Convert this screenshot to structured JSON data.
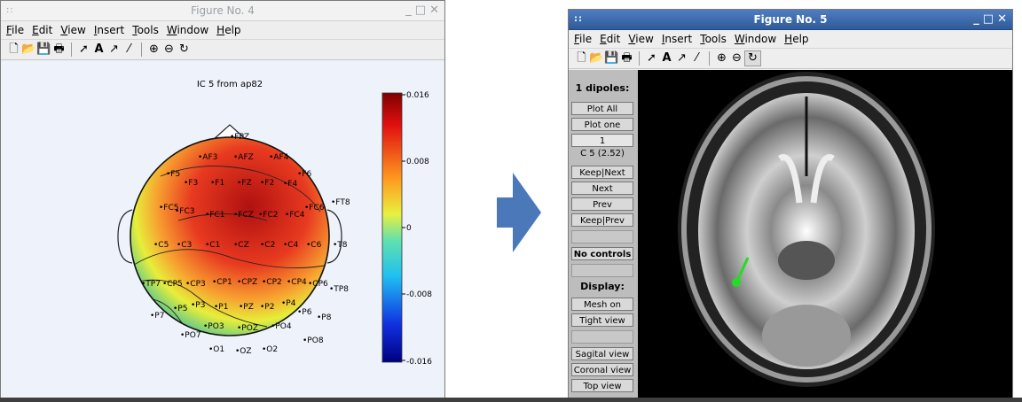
{
  "fig4": {
    "title": "Figure No. 4",
    "menu": [
      "File",
      "Edit",
      "View",
      "Insert",
      "Tools",
      "Window",
      "Help"
    ],
    "plot_title": "IC 5 from ap82",
    "colorbar_ticks": [
      "0.016",
      "0.008",
      "0",
      "-0.008",
      "-0.016"
    ],
    "electrodes": [
      "FPZ",
      "AF3",
      "AFZ",
      "AF4",
      "F5",
      "F3",
      "F1",
      "FZ",
      "F2",
      "F4",
      "F6",
      "FC5",
      "FC3",
      "FC1",
      "FCZ",
      "FC2",
      "FC4",
      "FC6",
      "FT8",
      "C5",
      "C3",
      "C1",
      "CZ",
      "C2",
      "C4",
      "C6",
      "T8",
      "TP7",
      "CP5",
      "CP3",
      "CP1",
      "CPZ",
      "CP2",
      "CP4",
      "CP6",
      "TP8",
      "P7",
      "P5",
      "P3",
      "P1",
      "PZ",
      "P2",
      "P4",
      "P6",
      "P8",
      "PO7",
      "PO3",
      "POZ",
      "PO4",
      "PO8",
      "O1",
      "OZ",
      "O2"
    ]
  },
  "fig5": {
    "title": "Figure No. 5",
    "menu": [
      "File",
      "Edit",
      "View",
      "Insert",
      "Tools",
      "Window",
      "Help"
    ],
    "dipoles_label": "1 dipoles:",
    "plot_all": "Plot All",
    "plot_one": "Plot one",
    "index_value": "1",
    "component": "C 5 (2.52)",
    "keep_next": "Keep|Next",
    "next": "Next",
    "prev": "Prev",
    "keep_prev": "Keep|Prev",
    "no_controls": "No controls",
    "display_label": "Display:",
    "mesh_on": "Mesh on",
    "tight_view": "Tight view",
    "sagital_view": "Sagital view",
    "coronal_view": "Coronal view",
    "top_view": "Top view"
  },
  "colors": {
    "active_title": "#2f5a98",
    "arrow": "#4a78b8",
    "dipole": "#22dd22"
  },
  "icons": [
    "new-icon",
    "open-icon",
    "save-icon",
    "print-icon",
    "pointer-icon",
    "text-icon",
    "arrow-icon",
    "line-icon",
    "zoom-in-icon",
    "zoom-out-icon",
    "rotate-icon"
  ]
}
